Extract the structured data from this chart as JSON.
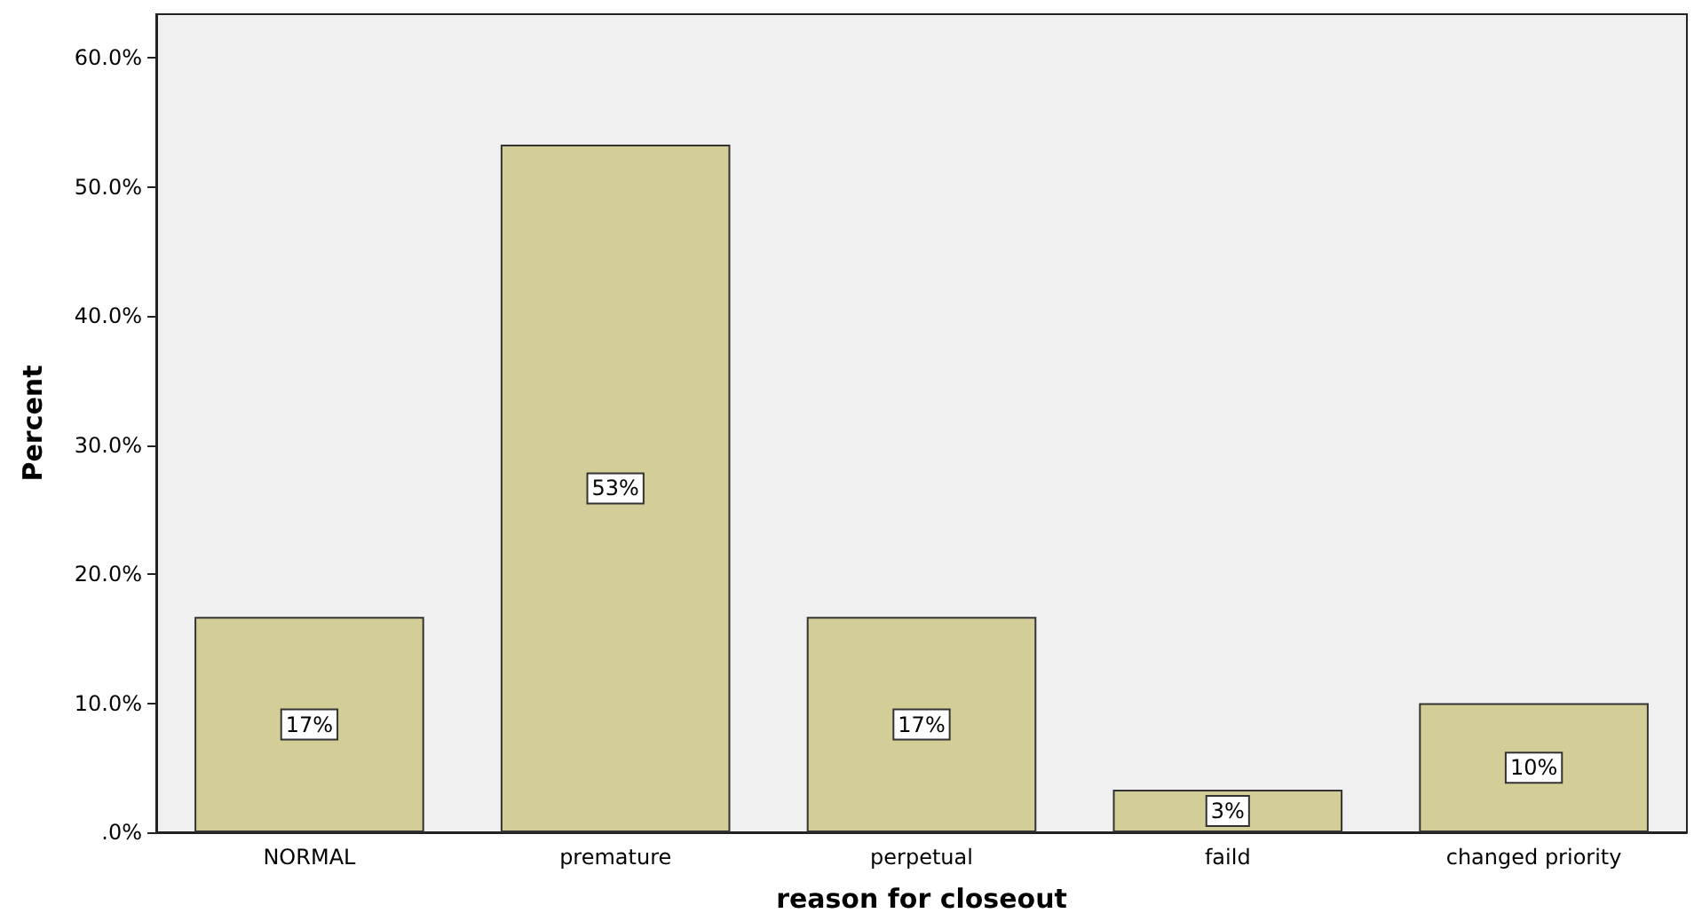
{
  "chart_data": {
    "type": "bar",
    "xlabel": "reason for closeout",
    "ylabel": "Percent",
    "categories": [
      "NORMAL",
      "premature",
      "perpetual",
      "faild",
      "changed priority"
    ],
    "values": [
      16.7,
      53.3,
      16.7,
      3.3,
      10.0
    ],
    "value_labels": [
      "17%",
      "53%",
      "17%",
      "3%",
      "10%"
    ],
    "color": "#d3ce97",
    "ylim": [
      0,
      63.4
    ],
    "yticks": [
      {
        "value": 0,
        "label": ".0%"
      },
      {
        "value": 10,
        "label": "10.0%"
      },
      {
        "value": 20,
        "label": "20.0%"
      },
      {
        "value": 30,
        "label": "30.0%"
      },
      {
        "value": 40,
        "label": "40.0%"
      },
      {
        "value": 50,
        "label": "50.0%"
      },
      {
        "value": 60,
        "label": "60.0%"
      }
    ],
    "grid": false
  }
}
